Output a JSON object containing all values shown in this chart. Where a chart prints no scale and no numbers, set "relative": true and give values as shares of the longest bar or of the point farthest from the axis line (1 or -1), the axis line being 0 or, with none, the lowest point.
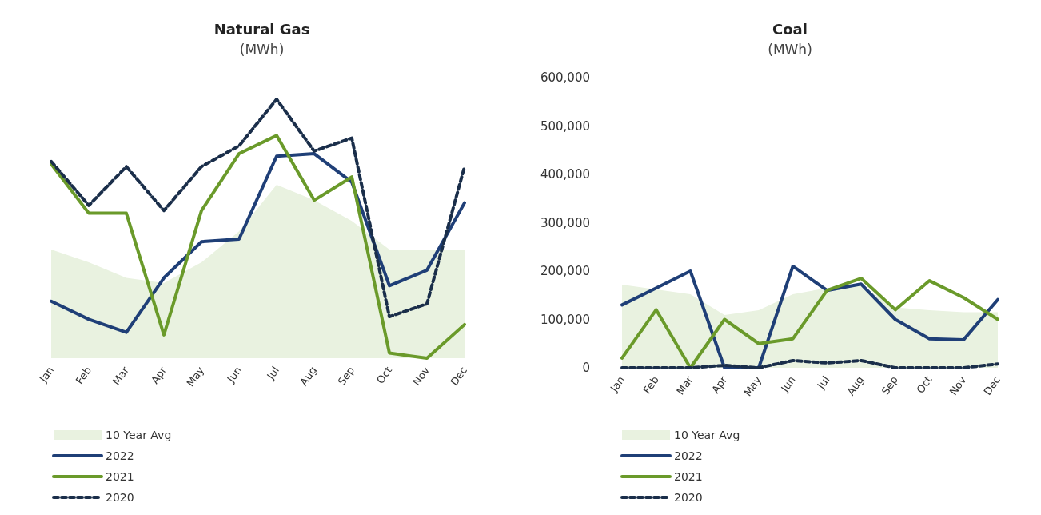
{
  "chart_data": [
    {
      "type": "line",
      "title": "Natural Gas",
      "subtitle": "(MWh)",
      "relative": true,
      "grid": false,
      "legend": "bottom left",
      "marker": "none",
      "categories": [
        "Jan",
        "Feb",
        "Mar",
        "Apr",
        "May",
        "Jun",
        "Jul",
        "Aug",
        "Sep",
        "Oct",
        "Nov",
        "Dec"
      ],
      "series": [
        {
          "name": "10 Year Avg",
          "type": "area",
          "color": "#e9f2e0",
          "values": [
            0.42,
            0.37,
            0.31,
            0.29,
            0.37,
            0.49,
            0.67,
            0.61,
            0.53,
            0.42,
            0.42,
            0.42
          ]
        },
        {
          "name": "2022",
          "type": "line",
          "color": "#1f3f77",
          "line_style": "solid",
          "values": [
            0.22,
            0.15,
            0.1,
            0.31,
            0.45,
            0.46,
            0.78,
            0.79,
            0.68,
            0.28,
            0.34,
            0.6
          ]
        },
        {
          "name": "2021",
          "type": "line",
          "color": "#6a9a2a",
          "line_style": "solid",
          "values": [
            0.75,
            0.56,
            0.56,
            0.09,
            0.57,
            0.79,
            0.86,
            0.61,
            0.7,
            0.02,
            0,
            0.13
          ]
        },
        {
          "name": "2020",
          "type": "line",
          "color": "#1a2e4a",
          "line_style": "dashed",
          "values": [
            0.76,
            0.59,
            0.74,
            0.57,
            0.74,
            0.82,
            1,
            0.8,
            0.85,
            0.16,
            0.21,
            0.74
          ]
        }
      ]
    },
    {
      "type": "line",
      "title": "Coal",
      "subtitle": "(MWh)",
      "grid": false,
      "legend": "bottom left",
      "marker": "none",
      "categories": [
        "Jan",
        "Feb",
        "Mar",
        "Apr",
        "May",
        "Jun",
        "Jul",
        "Aug",
        "Sep",
        "Oct",
        "Nov",
        "Dec"
      ],
      "ylim": [
        0,
        600000
      ],
      "yticks": [
        0,
        {
          "value": 100000,
          "label": "100,000"
        },
        {
          "value": 200000,
          "label": "200,000"
        },
        {
          "value": 300000,
          "label": "300,000"
        },
        {
          "value": 400000,
          "label": "400,000"
        },
        {
          "value": 500000,
          "label": "500,000"
        },
        {
          "value": 600000,
          "label": "600,000"
        }
      ],
      "series": [
        {
          "name": "10 Year Avg",
          "type": "area",
          "color": "#e9f2e0",
          "values": [
            172000,
            162000,
            152000,
            109000,
            119000,
            152000,
            165000,
            170000,
            125000,
            119000,
            115000,
            115000
          ]
        },
        {
          "name": "2022",
          "type": "line",
          "color": "#1f3f77",
          "line_style": "solid",
          "values": [
            130000,
            165000,
            200000,
            0,
            0,
            210000,
            160000,
            173000,
            100000,
            60000,
            58000,
            141000
          ]
        },
        {
          "name": "2021",
          "type": "line",
          "color": "#6a9a2a",
          "line_style": "solid",
          "values": [
            20000,
            120000,
            0,
            100000,
            50000,
            60000,
            160000,
            185000,
            120000,
            180000,
            145000,
            100000
          ]
        },
        {
          "name": "2020",
          "type": "line",
          "color": "#1a2e4a",
          "line_style": "dashed",
          "values": [
            0,
            0,
            0,
            5000,
            0,
            15000,
            10000,
            15000,
            0,
            0,
            0,
            8000
          ]
        }
      ]
    }
  ]
}
